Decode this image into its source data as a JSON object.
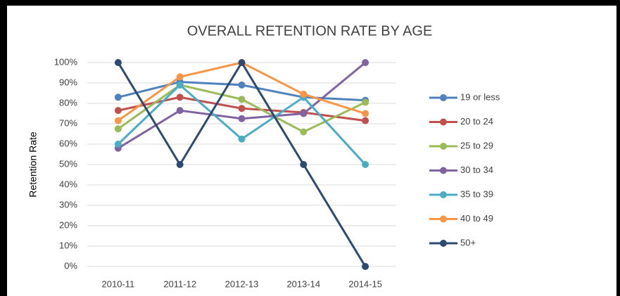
{
  "chart_data": {
    "type": "line",
    "title": "OVERALL RETENTION RATE BY AGE",
    "y_label": "Retention Rate",
    "categories": [
      "2010-11",
      "2011-12",
      "2012-13",
      "2013-14",
      "2014-15"
    ],
    "series": [
      {
        "name": "19 or less",
        "color": "#4f81bd",
        "values": [
          83,
          90.5,
          89,
          83,
          81.5
        ]
      },
      {
        "name": "20 to 24",
        "color": "#c0504d",
        "values": [
          76.5,
          83,
          77.5,
          75.5,
          71.5
        ]
      },
      {
        "name": "25 to 29",
        "color": "#9bbb59",
        "values": [
          67.5,
          89,
          82,
          66,
          80.5
        ]
      },
      {
        "name": "30 to 34",
        "color": "#8064a2",
        "values": [
          58,
          76.5,
          72.5,
          75,
          100
        ]
      },
      {
        "name": "35 to 39",
        "color": "#4bacc6",
        "values": [
          60,
          89,
          62.5,
          83,
          50
        ]
      },
      {
        "name": "40 to 49",
        "color": "#f79646",
        "values": [
          71.5,
          93,
          100,
          84.5,
          75
        ]
      },
      {
        "name": "50+",
        "color": "#2c4a72",
        "values": [
          100,
          50,
          100,
          50,
          0
        ]
      }
    ],
    "ylim": [
      0,
      100
    ],
    "yticks": [
      {
        "value": 0,
        "label": "0%"
      },
      {
        "value": 10,
        "label": "10%"
      },
      {
        "value": 20,
        "label": "20%"
      },
      {
        "value": 30,
        "label": "30%"
      },
      {
        "value": 40,
        "label": "40%"
      },
      {
        "value": 50,
        "label": "50%"
      },
      {
        "value": 60,
        "label": "60%"
      },
      {
        "value": 70,
        "label": "70%"
      },
      {
        "value": 80,
        "label": "80%"
      },
      {
        "value": 90,
        "label": "90%"
      },
      {
        "value": 100,
        "label": "100%"
      }
    ],
    "grid": true,
    "legend": "right"
  }
}
